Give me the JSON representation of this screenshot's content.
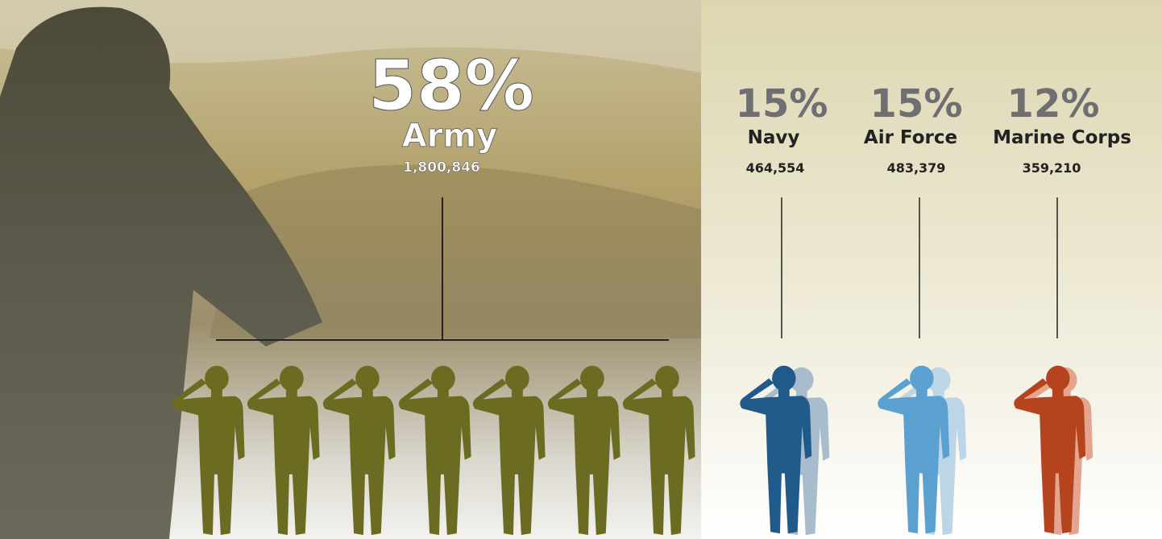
{
  "branches": [
    {
      "percent": "58%",
      "name": "Army",
      "count": "1,800,846"
    },
    {
      "percent": "15%",
      "name": "Navy",
      "count": "464,554"
    },
    {
      "percent": "15%",
      "name": "Air Force",
      "count": "483,379"
    },
    {
      "percent": "12%",
      "name": "Marine Corps",
      "count": "359,210"
    }
  ]
}
